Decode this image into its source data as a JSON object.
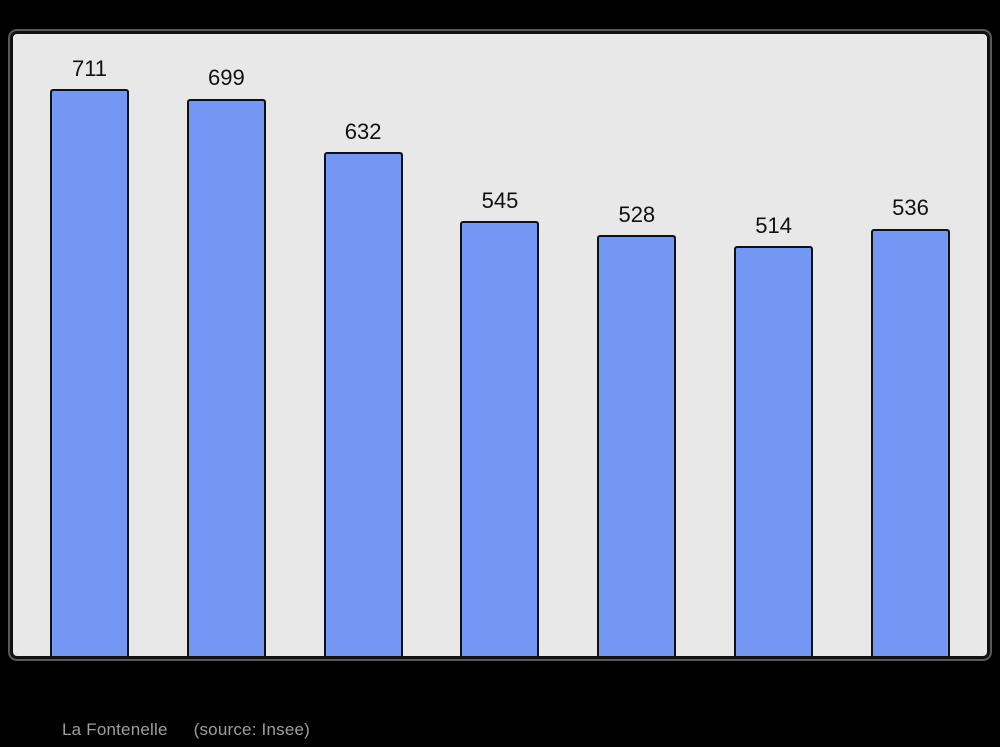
{
  "page": {
    "background": "#000000"
  },
  "caption": {
    "title": "La Fontenelle",
    "source": "(source: Insee)",
    "color": "#9e9e9e"
  },
  "chart_data": {
    "type": "bar",
    "values": [
      711,
      699,
      632,
      545,
      528,
      514,
      536
    ],
    "value_labels_shown": true,
    "title": "",
    "xlabel": "",
    "ylabel": "",
    "ylim": [
      0,
      780
    ],
    "grid": false,
    "legend": false,
    "plot_bg": "#e8e8e8",
    "plot_border_color": "#111111",
    "bar_color": "#7397f2",
    "bar_border_color": "#111111",
    "label_color": "#111111"
  }
}
